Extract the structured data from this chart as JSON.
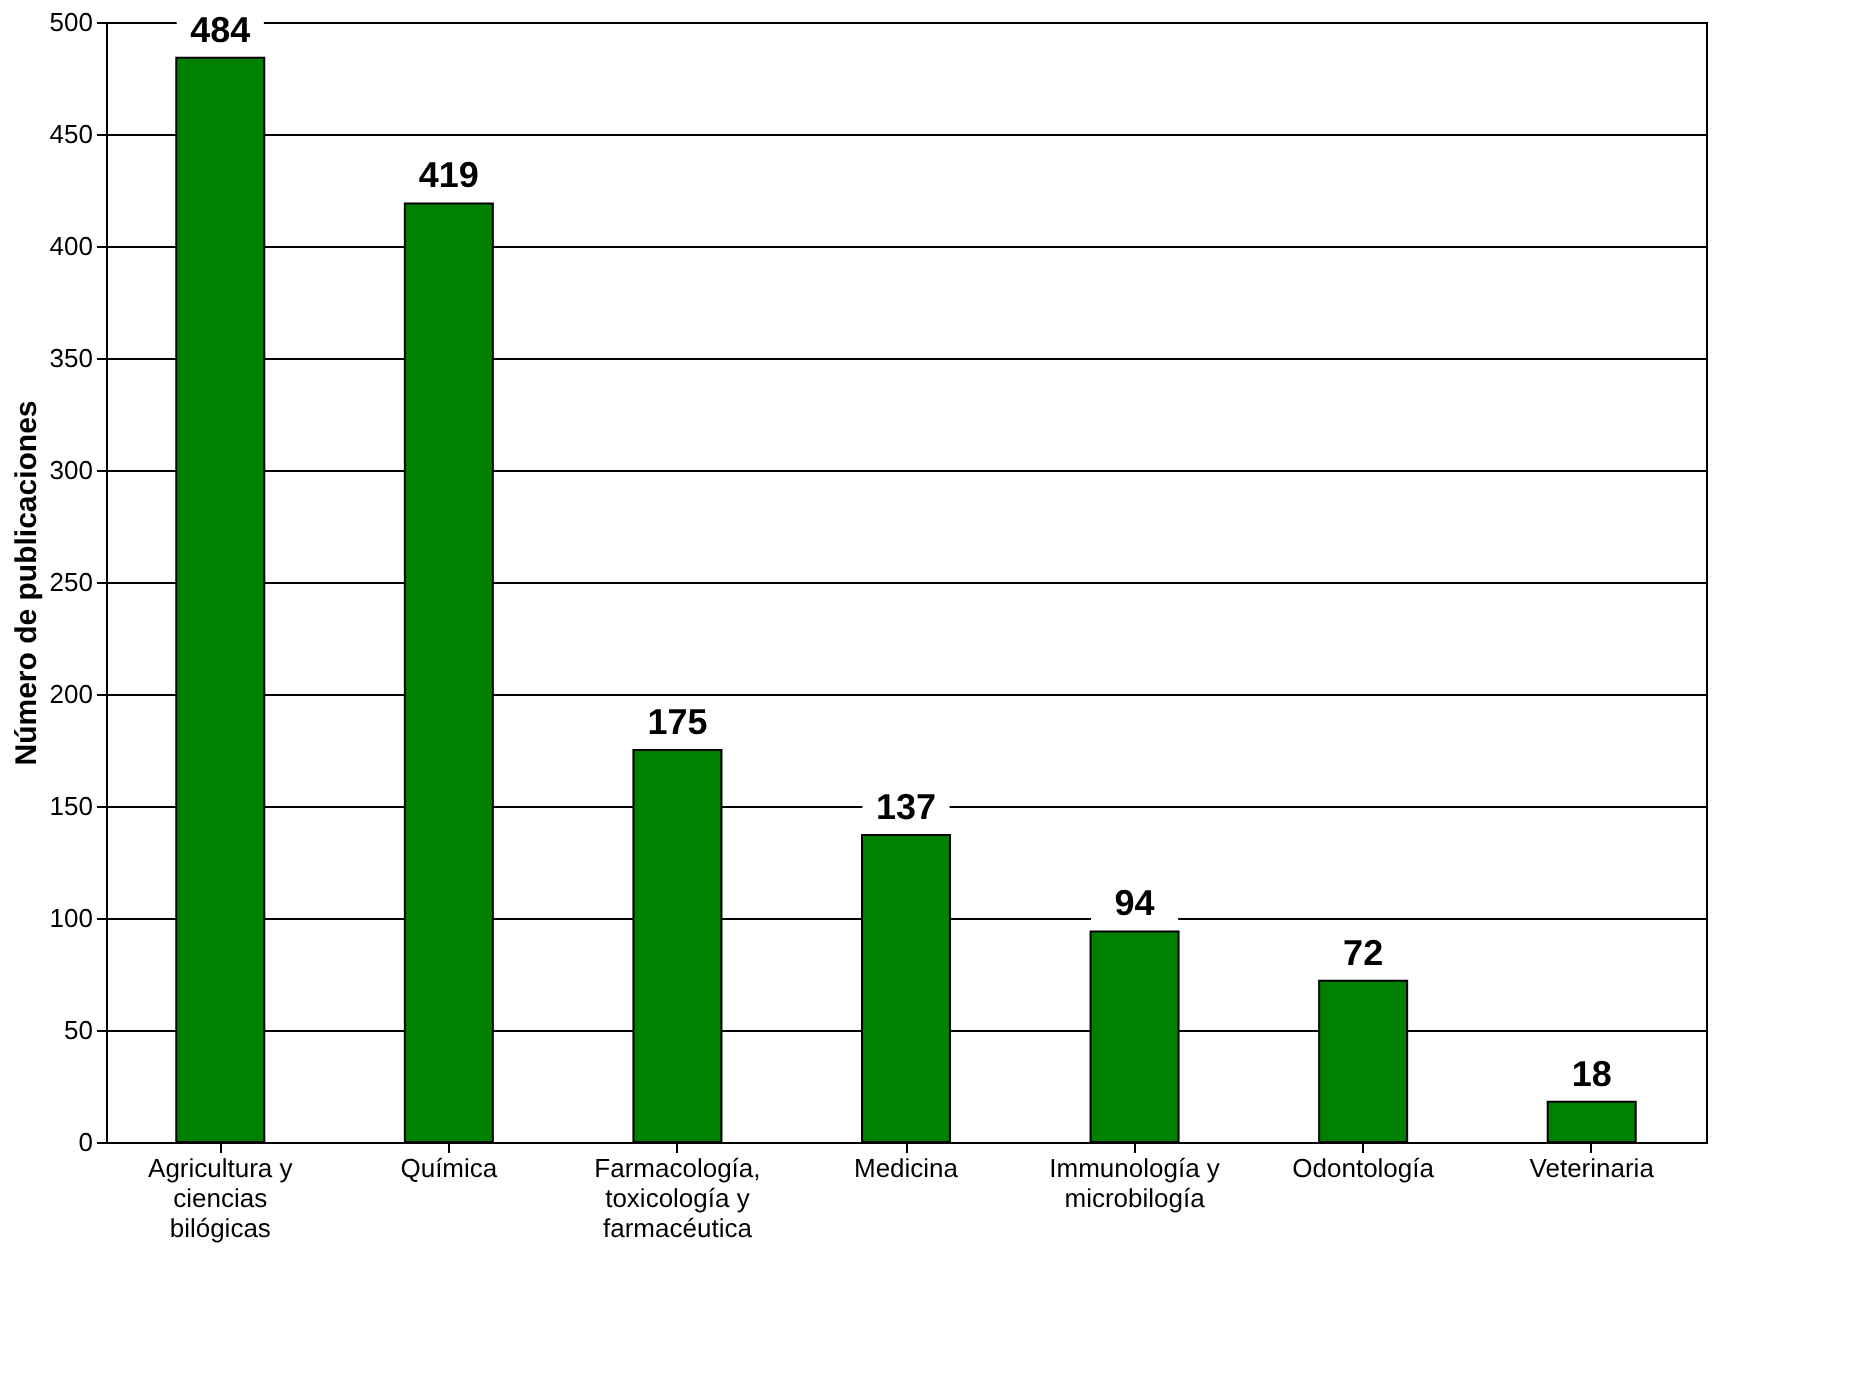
{
  "chart_data": {
    "type": "bar",
    "ylabel": "Número de publicaciones",
    "categories": [
      "Agricultura y ciencias bilógicas",
      "Química",
      "Farmacología, toxicología y farmacéutica",
      "Medicina",
      "Immunología y microbilogía",
      "Odontología",
      "Veterinaria"
    ],
    "values": [
      484,
      419,
      175,
      137,
      94,
      72,
      18
    ],
    "color": "#008000",
    "ylim": [
      0,
      500
    ],
    "yticks": [
      0,
      50,
      100,
      150,
      200,
      250,
      300,
      350,
      400,
      450,
      500
    ],
    "grid": "y",
    "data_labels": true
  }
}
